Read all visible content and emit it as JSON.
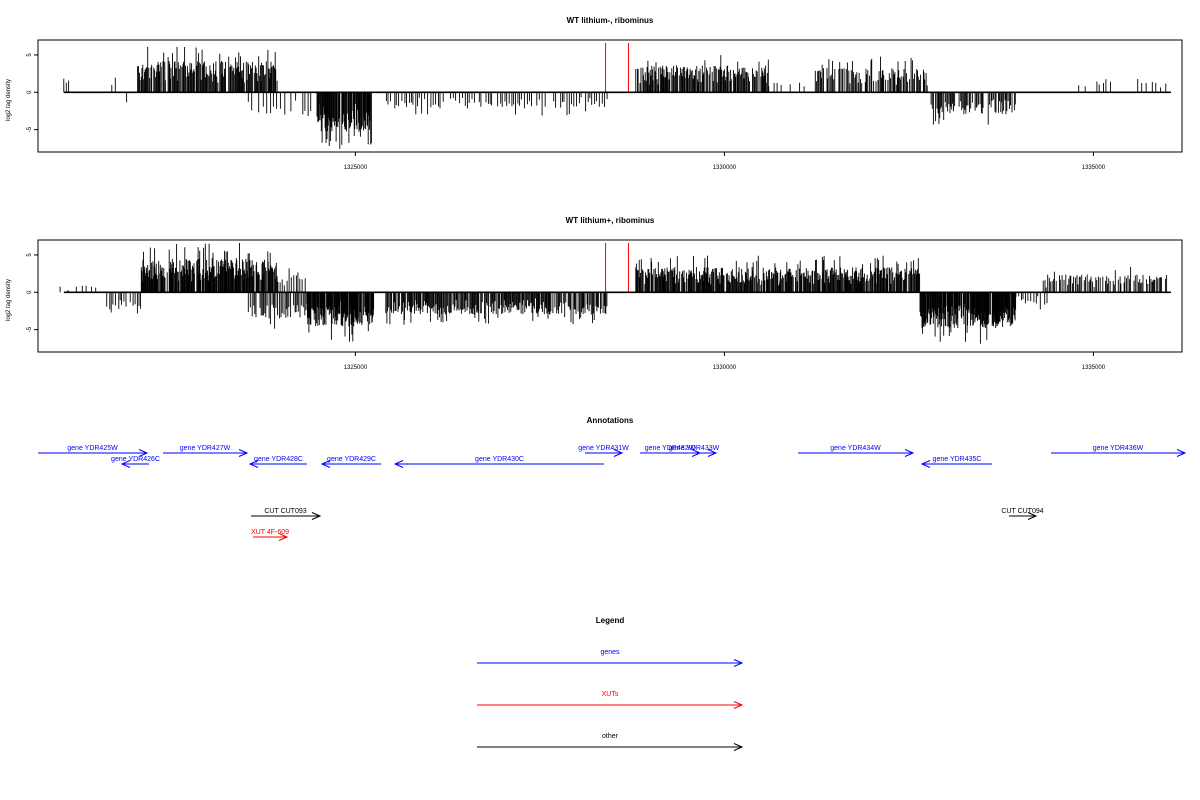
{
  "chart_data": [
    {
      "type": "bar",
      "title": "WT lithium-, ribominus",
      "ylabel": "log2 tag density",
      "xlabel": "",
      "xlim": [
        1320700,
        1336200
      ],
      "ylim": [
        -8,
        7
      ],
      "yticks": [
        -5,
        0,
        5
      ],
      "xticks": [
        1325000,
        1330000,
        1335000
      ],
      "xtick_labels": [
        "1325000",
        "1330000",
        "1335000"
      ],
      "grid": false,
      "markers": [
        {
          "x": 1328390,
          "color": "#ff0000"
        },
        {
          "x": 1328700,
          "color": "#ff0000"
        }
      ],
      "segments": [
        {
          "start": 1321050,
          "end": 1321150,
          "amp": 2.0,
          "step": 40
        },
        {
          "start": 1321700,
          "end": 1321800,
          "amp": 2.5,
          "step": 50
        },
        {
          "start": 1321900,
          "end": 1322000,
          "amp": -3.0,
          "step": 60
        },
        {
          "start": 1322050,
          "end": 1323950,
          "amp": 4.2,
          "step": 11
        },
        {
          "start": 1323550,
          "end": 1324400,
          "amp": -3.3,
          "step": 45
        },
        {
          "start": 1324480,
          "end": 1325220,
          "amp": -5.3,
          "step": 8
        },
        {
          "start": 1325420,
          "end": 1328420,
          "amp": -2.2,
          "step": 32
        },
        {
          "start": 1328800,
          "end": 1330600,
          "amp": 3.6,
          "step": 12
        },
        {
          "start": 1330600,
          "end": 1331100,
          "amp": 1.3,
          "step": 60
        },
        {
          "start": 1331200,
          "end": 1332750,
          "amp": 3.3,
          "step": 14
        },
        {
          "start": 1332800,
          "end": 1333950,
          "amp": -3.0,
          "step": 16
        },
        {
          "start": 1334800,
          "end": 1335250,
          "amp": 1.8,
          "step": 50
        },
        {
          "start": 1335600,
          "end": 1336000,
          "amp": 1.4,
          "step": 60
        }
      ]
    },
    {
      "type": "bar",
      "title": "WT lithium+, ribominus",
      "ylabel": "log2 tag density",
      "xlabel": "",
      "xlim": [
        1320700,
        1336200
      ],
      "ylim": [
        -8,
        7
      ],
      "yticks": [
        -5,
        0,
        5
      ],
      "xticks": [
        1325000,
        1330000,
        1335000
      ],
      "xtick_labels": [
        "1325000",
        "1330000",
        "1335000"
      ],
      "grid": false,
      "markers": [
        {
          "x": 1328390,
          "color": "#ff0000"
        },
        {
          "x": 1328700,
          "color": "#ff0000"
        }
      ],
      "segments": [
        {
          "start": 1321000,
          "end": 1321500,
          "amp": 1.0,
          "step": 60
        },
        {
          "start": 1321600,
          "end": 1322100,
          "amp": -2.4,
          "step": 30
        },
        {
          "start": 1322100,
          "end": 1323950,
          "amp": 4.6,
          "step": 8
        },
        {
          "start": 1323950,
          "end": 1324350,
          "amp": 2.4,
          "step": 30
        },
        {
          "start": 1323550,
          "end": 1324350,
          "amp": -3.6,
          "step": 20
        },
        {
          "start": 1324350,
          "end": 1325250,
          "amp": -4.6,
          "step": 6
        },
        {
          "start": 1325400,
          "end": 1328420,
          "amp": -3.0,
          "step": 12
        },
        {
          "start": 1328800,
          "end": 1332650,
          "amp": 3.4,
          "step": 10
        },
        {
          "start": 1332650,
          "end": 1333950,
          "amp": -4.8,
          "step": 7
        },
        {
          "start": 1333950,
          "end": 1334400,
          "amp": -1.8,
          "step": 30
        },
        {
          "start": 1334300,
          "end": 1336000,
          "amp": 2.4,
          "step": 18
        }
      ]
    }
  ],
  "annotations": {
    "title": "Annotations",
    "features": [
      {
        "label": "gene YDR425W",
        "kind": "gene",
        "strand": "+",
        "x1": 38,
        "x2": 147,
        "row": 0
      },
      {
        "label": "gene YDR426C",
        "kind": "gene",
        "strand": "-",
        "x1": 122,
        "x2": 149,
        "row": 1
      },
      {
        "label": "gene YDR427W",
        "kind": "gene",
        "strand": "+",
        "x1": 163,
        "x2": 247,
        "row": 0
      },
      {
        "label": "gene YDR428C",
        "kind": "gene",
        "strand": "-",
        "x1": 250,
        "x2": 307,
        "row": 1
      },
      {
        "label": "gene YDR429C",
        "kind": "gene",
        "strand": "-",
        "x1": 322,
        "x2": 381,
        "row": 1
      },
      {
        "label": "gene YDR430C",
        "kind": "gene",
        "strand": "-",
        "x1": 395,
        "x2": 604,
        "row": 1
      },
      {
        "label": "gene YDR431W",
        "kind": "gene",
        "strand": "+",
        "x1": 585,
        "x2": 622,
        "row": 0
      },
      {
        "label": "gene YDR432W",
        "kind": "gene",
        "strand": "+",
        "x1": 640,
        "x2": 700,
        "row": 0
      },
      {
        "label": "gene YDR433W",
        "kind": "gene",
        "strand": "+",
        "x1": 672,
        "x2": 716,
        "row": 0
      },
      {
        "label": "gene YDR434W",
        "kind": "gene",
        "strand": "+",
        "x1": 798,
        "x2": 913,
        "row": 0
      },
      {
        "label": "gene YDR435C",
        "kind": "gene",
        "strand": "-",
        "x1": 922,
        "x2": 992,
        "row": 1
      },
      {
        "label": "gene YDR436W",
        "kind": "gene",
        "strand": "+",
        "x1": 1051,
        "x2": 1185,
        "row": 0
      },
      {
        "label": "CUT CUT093",
        "kind": "other",
        "strand": "+",
        "x1": 251,
        "x2": 320,
        "row": 3
      },
      {
        "label": "CUT CUT094",
        "kind": "other",
        "strand": "+",
        "x1": 1009,
        "x2": 1036,
        "row": 3
      },
      {
        "label": "XUT 4F-609",
        "kind": "xut",
        "strand": "+",
        "x1": 253,
        "x2": 287,
        "row": 4
      }
    ]
  },
  "legend": {
    "title": "Legend",
    "items": [
      {
        "label": "genes",
        "color": "#0000ff"
      },
      {
        "label": "XUTs",
        "color": "#ff0000"
      },
      {
        "label": "other",
        "color": "#000000"
      }
    ]
  },
  "colors": {
    "gene": "#0000ff",
    "xut": "#ff0000",
    "other": "#000000",
    "marker": "#ff0000",
    "bars": "#000000"
  }
}
